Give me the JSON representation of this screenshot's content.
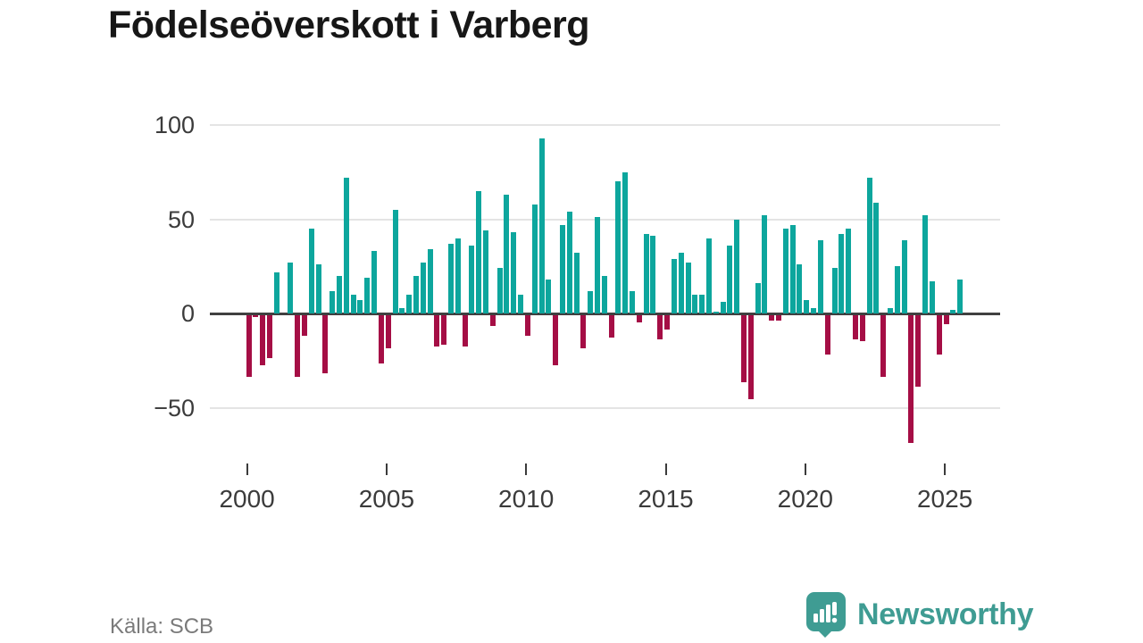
{
  "page": {
    "title": "Födelseöverskott i Varberg",
    "source_note": "Källa: SCB"
  },
  "brand": {
    "wordmark": "Newsworthy",
    "logo_icon": "newsworthy-speech-bubble-bar-chart-icon"
  },
  "colors": {
    "positive_bar": "#0DA69D",
    "negative_bar": "#A50E45",
    "logo_teal": "#3F9C93",
    "grid_line": "#E4E4E4",
    "zero_line": "#404040",
    "axis_text": "#3B3B3B",
    "title_text": "#171717",
    "source_text": "#7A7A7A",
    "background": "#FFFFFF"
  },
  "chart_data": {
    "type": "bar",
    "title": "Födelseöverskott i Varberg",
    "ylabel": "",
    "xlabel": "",
    "frequency": "quarterly",
    "start_period": "2000Q1",
    "end_period": "2025Q3",
    "values": [
      -33,
      -1,
      -27,
      -23,
      22,
      0,
      27,
      -33,
      -11,
      45,
      26,
      -31,
      12,
      20,
      72,
      10,
      7,
      19,
      33,
      -26,
      -18,
      55,
      3,
      10,
      20,
      27,
      34,
      -17,
      -16,
      37,
      40,
      -17,
      36,
      65,
      44,
      -6,
      24,
      63,
      43,
      10,
      -11,
      58,
      93,
      18,
      -27,
      47,
      54,
      32,
      -18,
      12,
      51,
      20,
      -12,
      70,
      75,
      12,
      -4,
      42,
      41,
      -13,
      -8,
      29,
      32,
      27,
      10,
      10,
      40,
      1,
      6,
      36,
      50,
      -36,
      -45,
      16,
      52,
      -3,
      -3,
      45,
      47,
      26,
      7,
      3,
      39,
      -21,
      24,
      42,
      45,
      -13,
      -14,
      72,
      59,
      -33,
      3,
      25,
      39,
      -68,
      -38,
      52,
      17,
      -21,
      -5,
      2,
      18
    ],
    "x_ticks": [
      2000,
      2005,
      2010,
      2015,
      2020,
      2025
    ],
    "y_ticks": [
      {
        "label": "100",
        "value": 100
      },
      {
        "label": "50",
        "value": 50
      },
      {
        "label": "0",
        "value": 0
      },
      {
        "label": "−50",
        "value": -50
      }
    ],
    "ylim": [
      -75,
      110
    ],
    "grid": "horizontal",
    "legend": "none"
  }
}
